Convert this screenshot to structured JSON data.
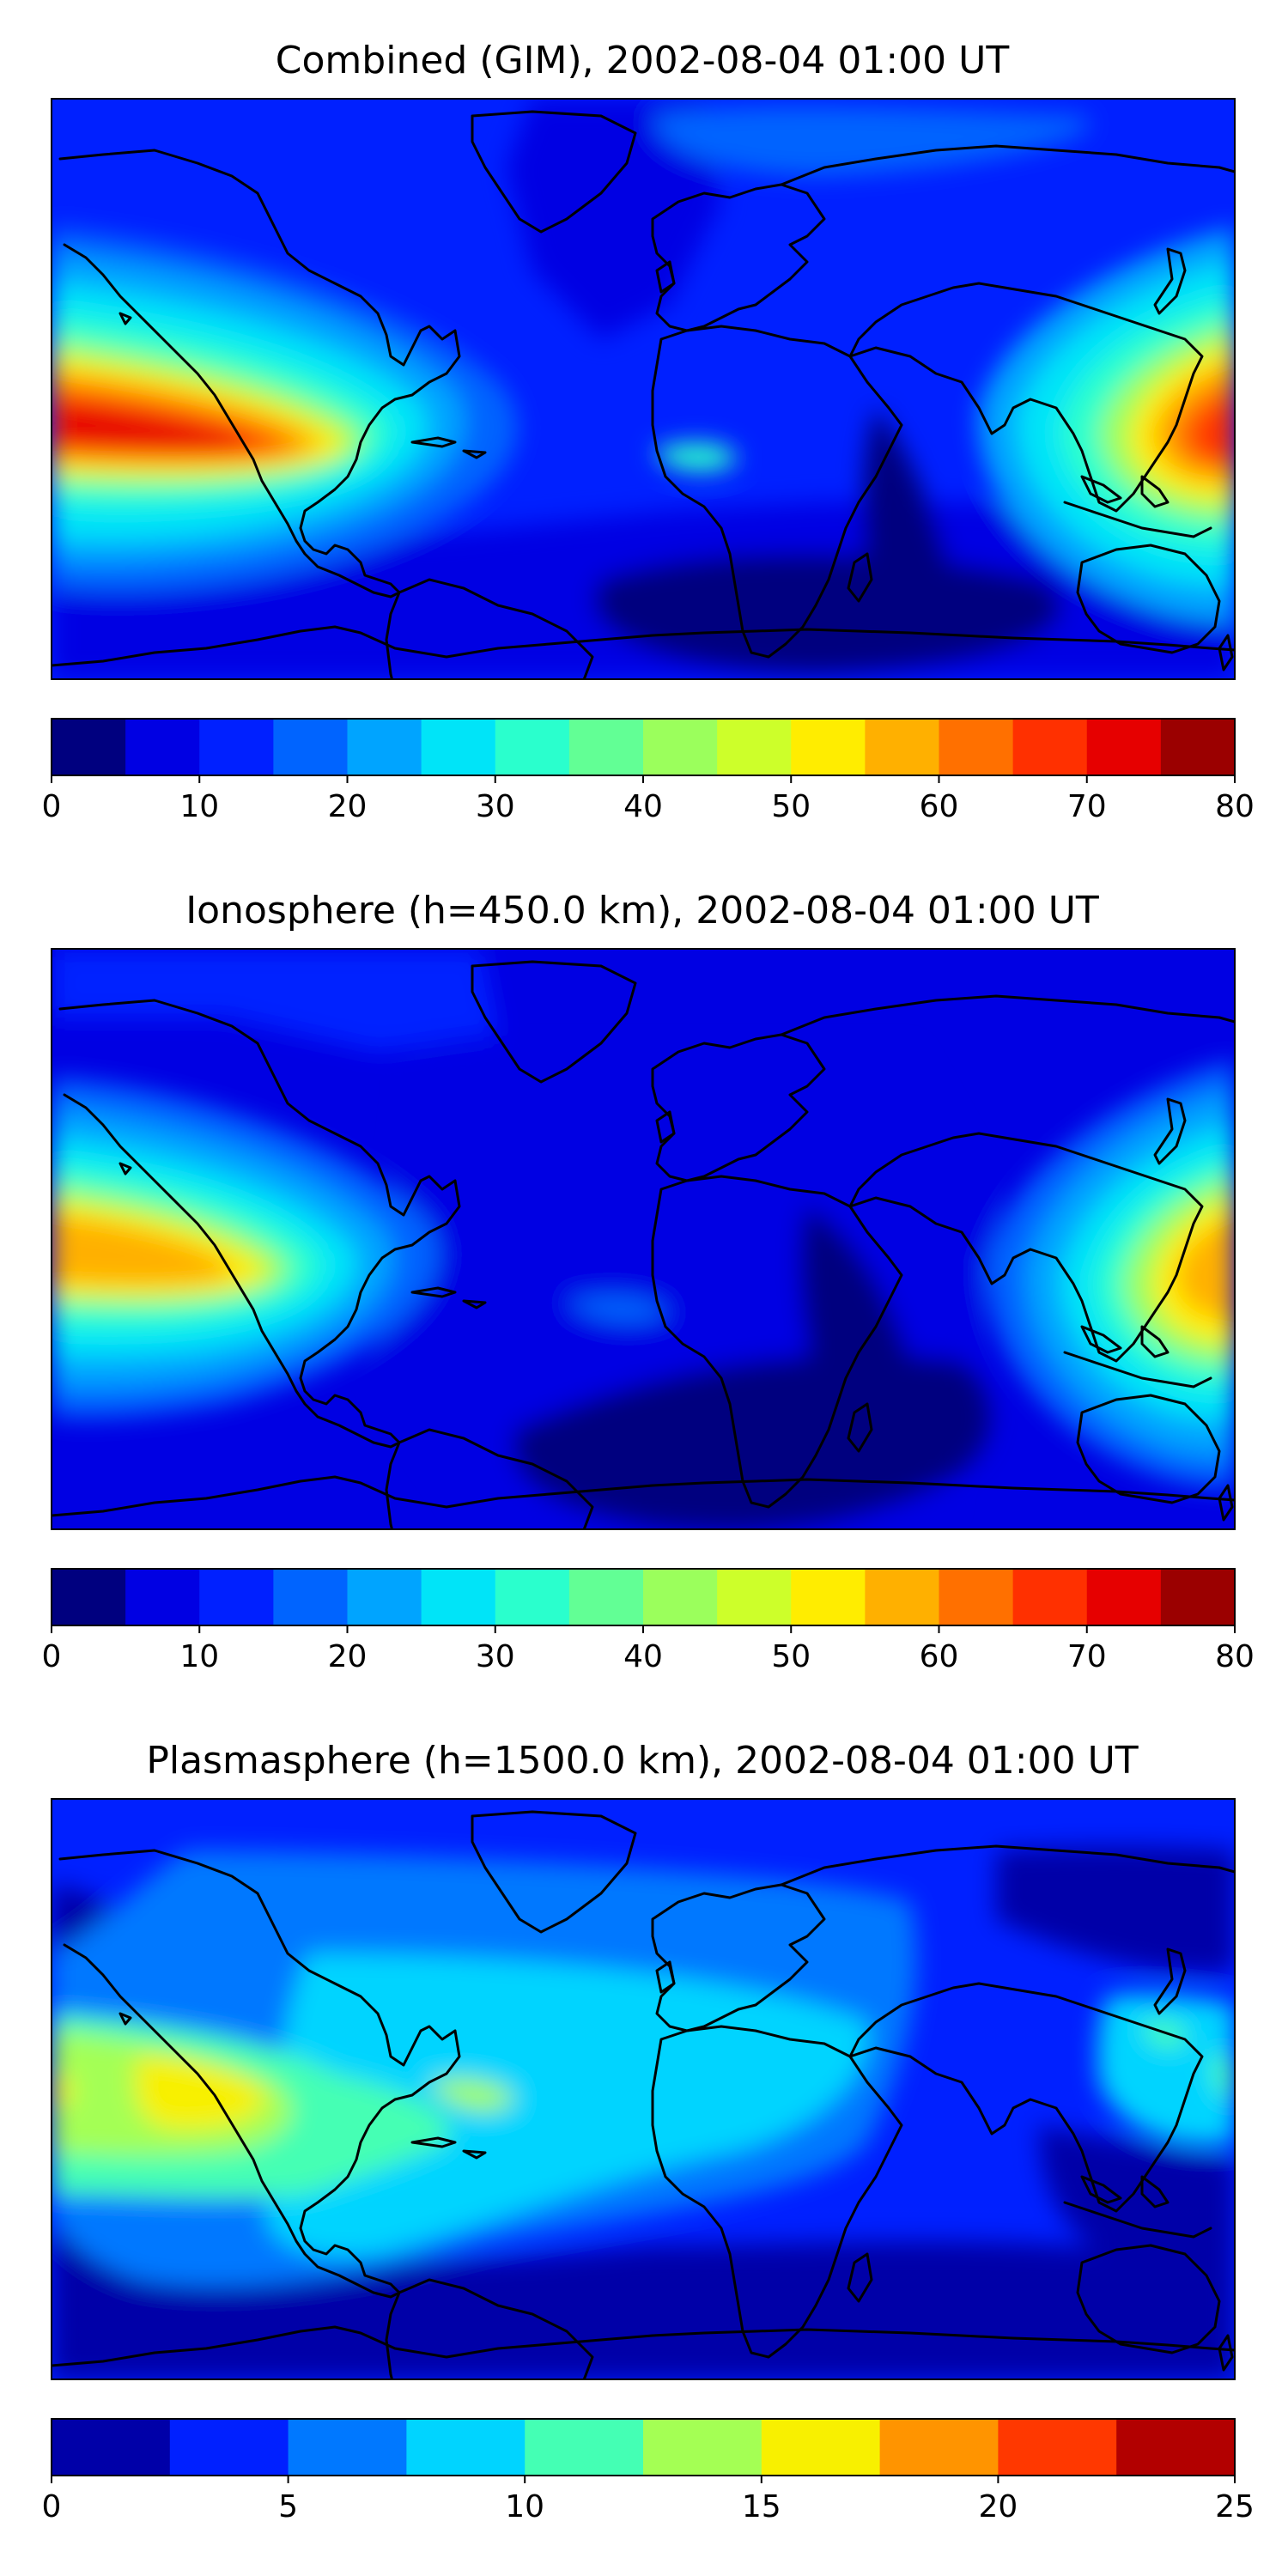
{
  "colors": {
    "jet16": [
      "#00007f",
      "#0000e3",
      "#0020ff",
      "#0064ff",
      "#00a4ff",
      "#00e4f8",
      "#2affcd",
      "#62ff95",
      "#9bff5c",
      "#cdff2a",
      "#ffed00",
      "#ffb000",
      "#ff7000",
      "#ff3000",
      "#e60000",
      "#9b0000"
    ],
    "jet10": [
      "#0000a8",
      "#0020ff",
      "#0078ff",
      "#00d4ff",
      "#44ffb4",
      "#a4ff54",
      "#f8f000",
      "#ff9400",
      "#ff3800",
      "#b20000"
    ],
    "coastline": "#000000",
    "background": "#ffffff"
  },
  "panels": [
    {
      "title": "Combined (GIM), 2002-08-04 01:00 UT",
      "colorbar": {
        "min": 0,
        "max": 80,
        "step": 5,
        "tick_labels": [
          "0",
          "10",
          "20",
          "30",
          "40",
          "50",
          "60",
          "70",
          "80"
        ]
      }
    },
    {
      "title": "Ionosphere  (h=450.0 km), 2002-08-04 01:00 UT",
      "colorbar": {
        "min": 0,
        "max": 80,
        "step": 5,
        "tick_labels": [
          "0",
          "10",
          "20",
          "30",
          "40",
          "50",
          "60",
          "70",
          "80"
        ]
      }
    },
    {
      "title": "Plasmasphere (h=1500.0 km), 2002-08-04 01:00 UT",
      "colorbar": {
        "min": 0,
        "max": 25,
        "step": 2.5,
        "tick_labels": [
          "0",
          "5",
          "10",
          "15",
          "20",
          "25"
        ]
      }
    }
  ]
}
